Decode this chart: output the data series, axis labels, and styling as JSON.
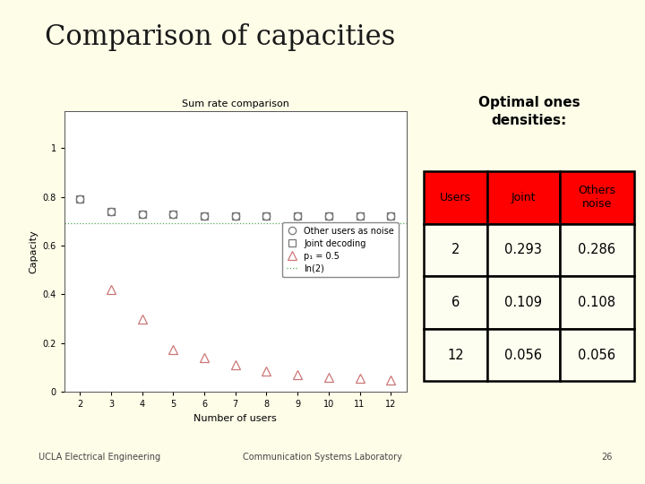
{
  "title": "Comparison of capacities",
  "slide_bg": "#FDFDE8",
  "plot_bg": "#FFFFFF",
  "title_fontsize": 22,
  "title_font": "serif",
  "title_color": "#1a1a1a",
  "subtitle": "UCLA Electrical Engineering",
  "subtitle2": "Communication Systems Laboratory",
  "page_num": "26",
  "chart_title": "Sum rate comparison",
  "xlabel": "Number of users",
  "ylabel": "Capacity",
  "xlim": [
    1.5,
    12.5
  ],
  "ylim": [
    0,
    1.15
  ],
  "yticks": [
    0,
    0.2,
    0.4,
    0.6,
    0.8,
    1
  ],
  "xticks": [
    2,
    3,
    4,
    5,
    6,
    7,
    8,
    9,
    10,
    11,
    12
  ],
  "users_x": [
    2,
    3,
    4,
    5,
    6,
    7,
    8,
    9,
    10,
    11,
    12
  ],
  "other_users_noise_y": [
    0.79,
    0.74,
    0.73,
    0.73,
    0.72,
    0.72,
    0.72,
    0.72,
    0.72,
    0.72,
    0.72
  ],
  "joint_decoding_y": [
    0.79,
    0.74,
    0.73,
    0.73,
    0.72,
    0.72,
    0.72,
    0.72,
    0.72,
    0.72,
    0.72
  ],
  "p1_05_y": [
    null,
    0.42,
    0.3,
    0.175,
    0.14,
    0.11,
    0.085,
    0.07,
    0.062,
    0.055,
    0.048
  ],
  "ln2_line_y": 0.693,
  "legend_labels": [
    "Other users as noise",
    "Joint decoding",
    "p₁ = 0.5",
    "ln(2)"
  ],
  "table_header": [
    "Users",
    "Joint",
    "Others\nnoise"
  ],
  "table_data": [
    [
      "2",
      "0.293",
      "0.286"
    ],
    [
      "6",
      "0.109",
      "0.108"
    ],
    [
      "12",
      "0.056",
      "0.056"
    ]
  ],
  "table_header_color": "#FF0000",
  "table_header_text_color": "#000000",
  "table_data_bg": "#FEFEF0",
  "table_border_color": "#000000",
  "optimal_label": "Optimal ones\ndensities:",
  "divider_color": "#8B0000",
  "gray_rect_color": "#999999"
}
